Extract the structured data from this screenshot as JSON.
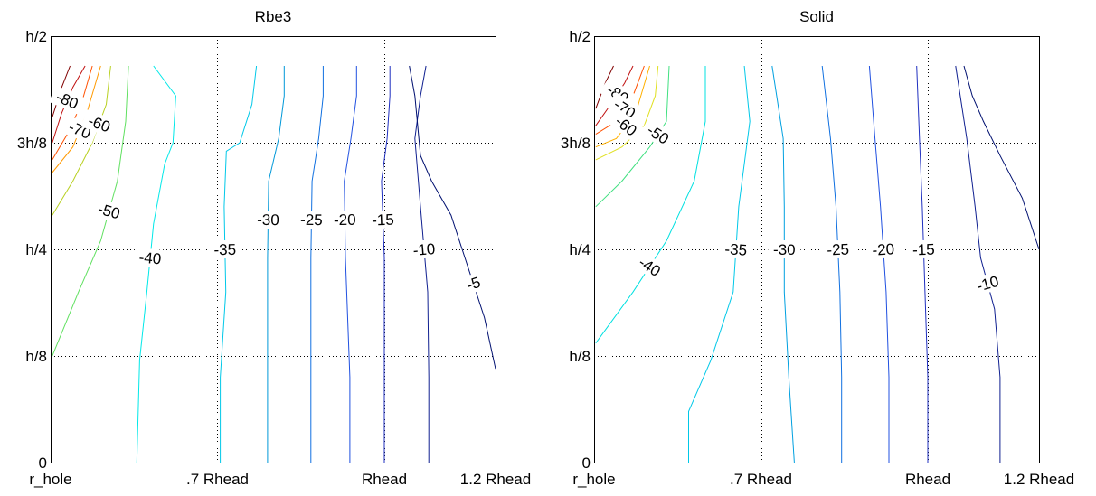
{
  "chart_data": [
    {
      "type": "contour",
      "title": "Rbe3",
      "xlabel": "",
      "ylabel": "",
      "xlim": [
        0.4,
        1.2
      ],
      "ylim": [
        0,
        0.5
      ],
      "x_tick_values": [
        0.4,
        0.7,
        1.0,
        1.2
      ],
      "x_tick_labels": [
        "r_hole",
        ".7 Rhead",
        "Rhead",
        "1.2 Rhead"
      ],
      "y_tick_values": [
        0,
        0.125,
        0.25,
        0.375,
        0.5
      ],
      "y_tick_labels": [
        "0",
        "h/8",
        "h/4",
        "3h/8",
        "h/2"
      ],
      "grid": true,
      "levels": [
        {
          "level": -90,
          "color": "#800000",
          "label": "",
          "points": [
            [
              0.403,
              0.405
            ],
            [
              0.42,
              0.44
            ],
            [
              0.435,
              0.465
            ]
          ]
        },
        {
          "level": -80,
          "color": "#c01010",
          "label": "-80",
          "points": [
            [
              0.403,
              0.375
            ],
            [
              0.42,
              0.41
            ],
            [
              0.44,
              0.44
            ],
            [
              0.462,
              0.465
            ]
          ]
        },
        {
          "level": -75,
          "color": "#ff5000",
          "label": "",
          "points": [
            [
              0.403,
              0.355
            ],
            [
              0.43,
              0.385
            ],
            [
              0.455,
              0.42
            ],
            [
              0.475,
              0.465
            ]
          ]
        },
        {
          "level": -70,
          "color": "#ff9900",
          "label": "-70",
          "points": [
            [
              0.403,
              0.34
            ],
            [
              0.44,
              0.37
            ],
            [
              0.465,
              0.41
            ],
            [
              0.49,
              0.465
            ]
          ]
        },
        {
          "level": -60,
          "color": "#b8d020",
          "label": "-60",
          "points": [
            [
              0.403,
              0.29
            ],
            [
              0.44,
              0.33
            ],
            [
              0.475,
              0.375
            ],
            [
              0.5,
              0.42
            ],
            [
              0.508,
              0.465
            ]
          ]
        },
        {
          "level": -50,
          "color": "#60e060",
          "label": "-50",
          "points": [
            [
              0.403,
              0.125
            ],
            [
              0.45,
              0.2
            ],
            [
              0.49,
              0.26
            ],
            [
              0.52,
              0.33
            ],
            [
              0.535,
              0.4
            ],
            [
              0.54,
              0.465
            ]
          ]
        },
        {
          "level": -40,
          "color": "#00e8e8",
          "label": "-40",
          "points": [
            [
              0.555,
              0
            ],
            [
              0.56,
              0.12
            ],
            [
              0.573,
              0.2
            ],
            [
              0.585,
              0.28
            ],
            [
              0.605,
              0.35
            ],
            [
              0.62,
              0.375
            ],
            [
              0.625,
              0.43
            ],
            [
              0.585,
              0.465
            ]
          ]
        },
        {
          "level": -35,
          "color": "#00c8e8",
          "label": "-35",
          "points": [
            [
              0.705,
              0
            ],
            [
              0.705,
              0.1
            ],
            [
              0.715,
              0.2
            ],
            [
              0.712,
              0.3
            ],
            [
              0.716,
              0.365
            ],
            [
              0.74,
              0.375
            ],
            [
              0.762,
              0.42
            ],
            [
              0.77,
              0.465
            ]
          ]
        },
        {
          "level": -30,
          "color": "#0098d8",
          "label": "-30",
          "points": [
            [
              0.79,
              0
            ],
            [
              0.79,
              0.1
            ],
            [
              0.79,
              0.24
            ],
            [
              0.792,
              0.33
            ],
            [
              0.81,
              0.38
            ],
            [
              0.82,
              0.43
            ],
            [
              0.82,
              0.465
            ]
          ]
        },
        {
          "level": -25,
          "color": "#1070e0",
          "label": "-25",
          "points": [
            [
              0.868,
              0
            ],
            [
              0.868,
              0.1
            ],
            [
              0.868,
              0.24
            ],
            [
              0.87,
              0.33
            ],
            [
              0.882,
              0.38
            ],
            [
              0.89,
              0.43
            ],
            [
              0.89,
              0.465
            ]
          ]
        },
        {
          "level": -20,
          "color": "#2050e0",
          "label": "-20",
          "points": [
            [
              0.938,
              0
            ],
            [
              0.938,
              0.1
            ],
            [
              0.93,
              0.24
            ],
            [
              0.928,
              0.33
            ],
            [
              0.94,
              0.38
            ],
            [
              0.95,
              0.43
            ],
            [
              0.95,
              0.465
            ]
          ]
        },
        {
          "level": -15,
          "color": "#2030c0",
          "label": "-15",
          "points": [
            [
              1.0,
              0
            ],
            [
              1.0,
              0.1
            ],
            [
              1.0,
              0.24
            ],
            [
              0.995,
              0.33
            ],
            [
              1.005,
              0.38
            ],
            [
              1.01,
              0.43
            ],
            [
              1.01,
              0.465
            ]
          ]
        },
        {
          "level": -10,
          "color": "#102090",
          "label": "-10",
          "points": [
            [
              1.08,
              0
            ],
            [
              1.08,
              0.1
            ],
            [
              1.078,
              0.2
            ],
            [
              1.065,
              0.3
            ],
            [
              1.055,
              0.38
            ],
            [
              1.065,
              0.43
            ],
            [
              1.075,
              0.465
            ]
          ]
        },
        {
          "level": -5,
          "color": "#001070",
          "label": "-5",
          "points": [
            [
              1.2,
              0.11
            ],
            [
              1.18,
              0.17
            ],
            [
              1.14,
              0.25
            ],
            [
              1.12,
              0.29
            ],
            [
              1.085,
              0.33
            ],
            [
              1.065,
              0.36
            ],
            [
              1.055,
              0.43
            ],
            [
              1.045,
              0.465
            ]
          ]
        }
      ]
    },
    {
      "type": "contour",
      "title": "Solid",
      "xlabel": "",
      "ylabel": "",
      "xlim": [
        0.4,
        1.2
      ],
      "ylim": [
        0,
        0.5
      ],
      "x_tick_values": [
        0.4,
        0.7,
        1.0,
        1.2
      ],
      "x_tick_labels": [
        "r_hole",
        ".7 Rhead",
        "Rhead",
        "1.2 Rhead"
      ],
      "y_tick_values": [
        0,
        0.125,
        0.25,
        0.375,
        0.5
      ],
      "y_tick_labels": [
        "0",
        "h/8",
        "h/4",
        "3h/8",
        "h/2"
      ],
      "grid": true,
      "levels": [
        {
          "level": -90,
          "color": "#800000",
          "label": "",
          "points": [
            [
              0.403,
              0.415
            ],
            [
              0.42,
              0.445
            ],
            [
              0.435,
              0.465
            ]
          ]
        },
        {
          "level": -80,
          "color": "#c01010",
          "label": "-80",
          "points": [
            [
              0.403,
              0.395
            ],
            [
              0.43,
              0.42
            ],
            [
              0.455,
              0.445
            ],
            [
              0.47,
              0.465
            ]
          ]
        },
        {
          "level": -70,
          "color": "#ff5000",
          "label": "-70",
          "points": [
            [
              0.403,
              0.385
            ],
            [
              0.44,
              0.4
            ],
            [
              0.47,
              0.43
            ],
            [
              0.49,
              0.465
            ]
          ]
        },
        {
          "level": -60,
          "color": "#ffb000",
          "label": "-60",
          "points": [
            [
              0.403,
              0.37
            ],
            [
              0.44,
              0.38
            ],
            [
              0.475,
              0.41
            ],
            [
              0.5,
              0.465
            ]
          ]
        },
        {
          "level": -55,
          "color": "#e0e020",
          "label": "",
          "points": [
            [
              0.403,
              0.355
            ],
            [
              0.45,
              0.37
            ],
            [
              0.49,
              0.395
            ],
            [
              0.51,
              0.43
            ],
            [
              0.515,
              0.465
            ]
          ]
        },
        {
          "level": -50,
          "color": "#40e080",
          "label": "-50",
          "points": [
            [
              0.403,
              0.3
            ],
            [
              0.45,
              0.33
            ],
            [
              0.5,
              0.37
            ],
            [
              0.53,
              0.4
            ],
            [
              0.535,
              0.465
            ]
          ]
        },
        {
          "level": -40,
          "color": "#00e0e0",
          "label": "-40",
          "points": [
            [
              0.403,
              0.14
            ],
            [
              0.47,
              0.2
            ],
            [
              0.53,
              0.26
            ],
            [
              0.58,
              0.33
            ],
            [
              0.6,
              0.4
            ],
            [
              0.6,
              0.465
            ]
          ]
        },
        {
          "level": -35,
          "color": "#00c8e8",
          "label": "-35",
          "points": [
            [
              0.57,
              0
            ],
            [
              0.57,
              0.06
            ],
            [
              0.61,
              0.12
            ],
            [
              0.65,
              0.2
            ],
            [
              0.66,
              0.3
            ],
            [
              0.68,
              0.4
            ],
            [
              0.67,
              0.465
            ]
          ]
        },
        {
          "level": -30,
          "color": "#00a0e0",
          "label": "-30",
          "points": [
            [
              0.76,
              0
            ],
            [
              0.75,
              0.1
            ],
            [
              0.742,
              0.2
            ],
            [
              0.742,
              0.3
            ],
            [
              0.74,
              0.38
            ],
            [
              0.72,
              0.465
            ]
          ]
        },
        {
          "level": -25,
          "color": "#1070e0",
          "label": "-25",
          "points": [
            [
              0.845,
              0
            ],
            [
              0.845,
              0.1
            ],
            [
              0.842,
              0.2
            ],
            [
              0.835,
              0.3
            ],
            [
              0.825,
              0.38
            ],
            [
              0.81,
              0.465
            ]
          ]
        },
        {
          "level": -20,
          "color": "#2050e0",
          "label": "-20",
          "points": [
            [
              0.93,
              0
            ],
            [
              0.93,
              0.1
            ],
            [
              0.925,
              0.2
            ],
            [
              0.915,
              0.3
            ],
            [
              0.905,
              0.38
            ],
            [
              0.895,
              0.465
            ]
          ]
        },
        {
          "level": -15,
          "color": "#2030c0",
          "label": "-15",
          "points": [
            [
              1.0,
              0
            ],
            [
              1.0,
              0.1
            ],
            [
              0.995,
              0.2
            ],
            [
              0.99,
              0.3
            ],
            [
              0.985,
              0.38
            ],
            [
              0.98,
              0.465
            ]
          ]
        },
        {
          "level": -10,
          "color": "#102090",
          "label": "-10",
          "points": [
            [
              1.13,
              0
            ],
            [
              1.13,
              0.1
            ],
            [
              1.12,
              0.18
            ],
            [
              1.095,
              0.24
            ],
            [
              1.085,
              0.3
            ],
            [
              1.07,
              0.38
            ],
            [
              1.05,
              0.465
            ]
          ]
        },
        {
          "level": -5,
          "color": "#001070",
          "label": "",
          "points": [
            [
              1.2,
              0.25
            ],
            [
              1.17,
              0.31
            ],
            [
              1.13,
              0.36
            ],
            [
              1.1,
              0.4
            ],
            [
              1.08,
              0.43
            ],
            [
              1.065,
              0.465
            ]
          ]
        }
      ]
    }
  ]
}
